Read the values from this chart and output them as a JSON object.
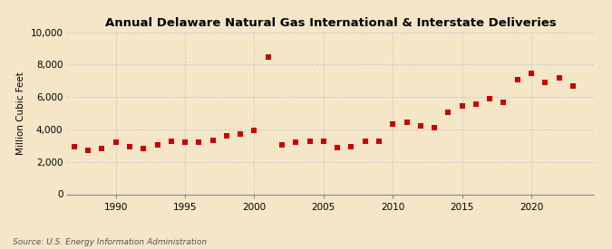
{
  "title": "Annual Delaware Natural Gas International & Interstate Deliveries",
  "ylabel": "Million Cubic Feet",
  "source": "Source: U.S. Energy Information Administration",
  "background_color": "#f5e6c8",
  "plot_background_color": "#f5e6c8",
  "marker_color": "#cc0000",
  "marker_size": 18,
  "xlim": [
    1986.5,
    2024.5
  ],
  "ylim": [
    0,
    10000
  ],
  "yticks": [
    0,
    2000,
    4000,
    6000,
    8000,
    10000
  ],
  "xticks": [
    1990,
    1995,
    2000,
    2005,
    2010,
    2015,
    2020
  ],
  "years": [
    1987,
    1988,
    1989,
    1990,
    1991,
    1992,
    1993,
    1994,
    1995,
    1996,
    1997,
    1998,
    1999,
    2000,
    2001,
    2002,
    2003,
    2004,
    2005,
    2006,
    2007,
    2008,
    2009,
    2010,
    2011,
    2012,
    2013,
    2014,
    2015,
    2016,
    2017,
    2018,
    2019,
    2020,
    2021,
    2022,
    2023
  ],
  "values": [
    2950,
    2700,
    2800,
    3200,
    2950,
    2850,
    3050,
    3300,
    3200,
    3200,
    3350,
    3600,
    3700,
    3950,
    8450,
    3050,
    3200,
    3300,
    3300,
    2900,
    2950,
    3250,
    3300,
    4350,
    4450,
    4250,
    4100,
    5050,
    5450,
    5550,
    5900,
    5700,
    7100,
    7450,
    6900,
    7200,
    6700
  ],
  "grid_color": "#c8c8c8",
  "spine_color": "#888888",
  "title_fontsize": 9.5,
  "ylabel_fontsize": 7.5,
  "tick_fontsize": 7.5,
  "source_fontsize": 6.5
}
